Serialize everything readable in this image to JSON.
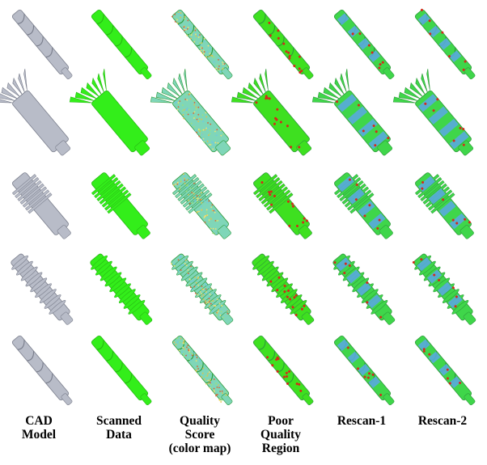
{
  "columns": [
    {
      "id": "cad",
      "label": "CAD\nModel"
    },
    {
      "id": "scanned",
      "label": "Scanned\nData"
    },
    {
      "id": "quality",
      "label": "Quality\nScore\n(color map)"
    },
    {
      "id": "poor",
      "label": "Poor\nQuality\nRegion"
    },
    {
      "id": "rescan1",
      "label": "Rescan-1"
    },
    {
      "id": "rescan2",
      "label": "Rescan-2"
    }
  ],
  "rows": [
    {
      "part": "drill-bit"
    },
    {
      "part": "bevel-gear-shaft"
    },
    {
      "part": "spur-gear-shaft"
    },
    {
      "part": "threaded-shaft"
    },
    {
      "part": "twist-drill"
    }
  ],
  "colors": {
    "cad": "#b8bcc8",
    "scanned": "#33ee1a",
    "quality_base": "#7fd6b8",
    "poor_base": "#3ee020",
    "poor_marker": "#d42a1a",
    "rescan_blue": "#5aa7e6",
    "rescan_green": "#3fd64a"
  }
}
